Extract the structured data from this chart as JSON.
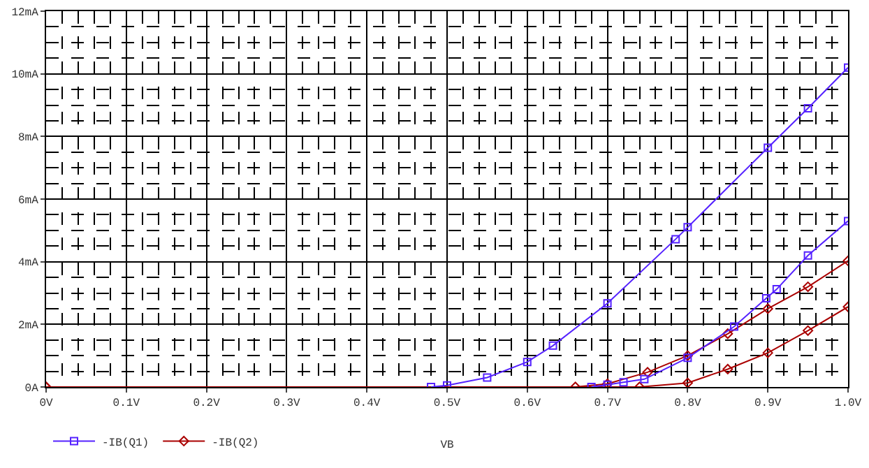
{
  "chart_data": {
    "type": "line",
    "xlabel": "VB",
    "xlim": [
      0,
      1.0
    ],
    "xticks": [
      {
        "value": 0,
        "label": "0V"
      },
      {
        "value": 0.1,
        "label": "0.1V"
      },
      {
        "value": 0.2,
        "label": "0.2V"
      },
      {
        "value": 0.3,
        "label": "0.3V"
      },
      {
        "value": 0.4,
        "label": "0.4V"
      },
      {
        "value": 0.5,
        "label": "0.5V"
      },
      {
        "value": 0.6,
        "label": "0.6V"
      },
      {
        "value": 0.7,
        "label": "0.7V"
      },
      {
        "value": 0.8,
        "label": "0.8V"
      },
      {
        "value": 0.9,
        "label": "0.9V"
      },
      {
        "value": 1.0,
        "label": "1.0V"
      }
    ],
    "ylim": [
      0,
      12
    ],
    "yticks": [
      {
        "value": 0,
        "label": "0A"
      },
      {
        "value": 2,
        "label": "2mA"
      },
      {
        "value": 4,
        "label": "4mA"
      },
      {
        "value": 6,
        "label": "6mA"
      },
      {
        "value": 8,
        "label": "8mA"
      },
      {
        "value": 10,
        "label": "10mA"
      },
      {
        "value": 12,
        "label": "12mA"
      }
    ],
    "grid": true,
    "legend": "bottom left",
    "series": [
      {
        "name": "-IB(Q1)",
        "color": "#5522ff",
        "marker": "square",
        "x": [
          0.48,
          0.5,
          0.55,
          0.6,
          0.632,
          0.7,
          0.785,
          0.8,
          0.9,
          0.95,
          1.0
        ],
        "values": [
          0,
          0.05,
          0.3,
          0.8,
          1.32,
          2.67,
          4.72,
          5.1,
          7.64,
          8.9,
          10.2
        ]
      },
      {
        "color": "#5522ff",
        "marker": "square",
        "x": [
          0.68,
          0.7,
          0.72,
          0.746,
          0.8,
          0.858,
          0.898,
          0.911,
          0.95,
          1.0
        ],
        "values": [
          0,
          0.07,
          0.15,
          0.25,
          0.93,
          1.93,
          2.83,
          3.12,
          4.2,
          5.3
        ]
      },
      {
        "color": "#aa0000",
        "marker": "diamond",
        "x": [
          0,
          0.66,
          0.7,
          0.75,
          0.8,
          0.85,
          0.9,
          0.95,
          1.0
        ],
        "values": [
          0,
          0,
          0.1,
          0.47,
          1.0,
          1.7,
          2.5,
          3.2,
          4.03
        ]
      },
      {
        "name": "-IB(Q2)",
        "color": "#aa0000",
        "marker": "diamond",
        "x": [
          0,
          0.74,
          0.8,
          0.85,
          0.9,
          0.95,
          1.0
        ],
        "values": [
          0,
          0,
          0.13,
          0.57,
          1.09,
          1.8,
          2.56
        ]
      }
    ]
  }
}
